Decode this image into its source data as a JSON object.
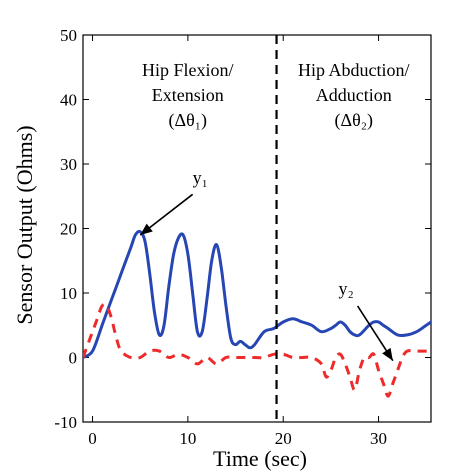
{
  "chart_data": {
    "type": "line",
    "xlabel": "Time (sec)",
    "ylabel": "Sensor Output (Ohms)",
    "xlim": [
      -1,
      35.5
    ],
    "ylim": [
      -10,
      50
    ],
    "x_ticks": [
      0,
      10,
      20,
      30
    ],
    "y_ticks": [
      -10,
      0,
      10,
      20,
      30,
      40,
      50
    ],
    "grid": false,
    "vline_x": 19.3,
    "regions": [
      {
        "lines": [
          "Hip Flexion/",
          "Extension",
          "(Δθ₁)"
        ]
      },
      {
        "lines": [
          "Hip Abduction/",
          "Adduction",
          "(Δθ₂)"
        ]
      }
    ],
    "annotations": [
      {
        "text": "y₁",
        "series": "y1",
        "target": [
          5.0,
          19.0
        ]
      },
      {
        "text": "y₂",
        "series": "y2",
        "target": [
          31.5,
          -0.5
        ]
      }
    ],
    "series": [
      {
        "id": "y1",
        "color": "#2646b4",
        "dash": "solid",
        "x": [
          -1,
          0,
          1,
          2,
          3,
          4,
          4.5,
          5,
          5.5,
          6,
          6.5,
          7,
          7.5,
          8,
          8.5,
          9,
          9.5,
          10,
          10.5,
          11,
          11.5,
          12,
          12.5,
          13,
          13.5,
          14,
          14.5,
          15,
          15.5,
          16,
          16.5,
          17,
          18,
          19,
          20,
          21,
          22,
          23,
          24,
          25,
          25.5,
          26,
          26.5,
          27,
          27.5,
          28,
          29,
          29.5,
          30,
          30.5,
          31,
          32,
          33,
          34,
          35,
          35.5
        ],
        "y": [
          0,
          1,
          5,
          9,
          13,
          17,
          19,
          19.5,
          18,
          13,
          7,
          3.5,
          5,
          11,
          16,
          18.5,
          19,
          16,
          10,
          4,
          4,
          9,
          15,
          17.5,
          14,
          8,
          3,
          2,
          2.5,
          2,
          1.5,
          2,
          4,
          4.5,
          5.5,
          6,
          5.5,
          5,
          4,
          4.5,
          5,
          5.5,
          5,
          4,
          3.5,
          3.5,
          5,
          5.5,
          5.5,
          5,
          4.5,
          3.5,
          3.5,
          4,
          5,
          5.5
        ]
      },
      {
        "id": "y2",
        "color": "#ee2a2a",
        "dash": "dashed",
        "x": [
          -1,
          0,
          0.5,
          1,
          1.5,
          2,
          2.5,
          3,
          4,
          5,
          6,
          7,
          8,
          9,
          10,
          11,
          12,
          13,
          14,
          15,
          16,
          17,
          18,
          19,
          20,
          21,
          22,
          23,
          24,
          24.5,
          25,
          25.5,
          26,
          26.5,
          27,
          27.5,
          28,
          28.5,
          29,
          29.5,
          30,
          30.5,
          31,
          31.5,
          32,
          32.5,
          33,
          34,
          35,
          35.5
        ],
        "y": [
          0,
          4,
          6,
          8,
          8,
          6,
          3,
          1,
          0,
          0,
          1,
          1,
          0,
          0.5,
          0,
          -1,
          0,
          -1,
          0,
          0,
          0,
          0,
          0,
          0.5,
          0.5,
          0,
          0,
          0,
          -1,
          -3,
          -2,
          0,
          0.5,
          -1,
          -3,
          -5,
          -2,
          0,
          0,
          0.5,
          -2,
          -4,
          -6,
          -4,
          -2,
          0,
          1,
          1,
          1,
          1
        ]
      }
    ]
  }
}
